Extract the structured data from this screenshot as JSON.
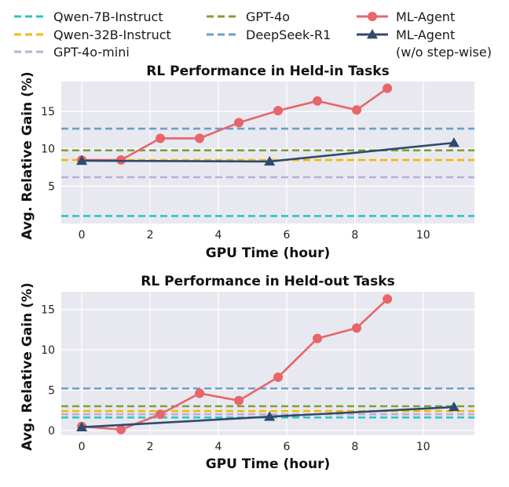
{
  "legend": {
    "entries": [
      {
        "label": "Qwen-7B-Instruct",
        "color": "#2ec4c4",
        "style": "dashed"
      },
      {
        "label": "Qwen-32B-Instruct",
        "color": "#f5b800",
        "style": "dashed"
      },
      {
        "label": "GPT-4o-mini",
        "color": "#b7b0d9",
        "style": "dashed"
      },
      {
        "label": "GPT-4o",
        "color": "#7f9e3a",
        "style": "dashed"
      },
      {
        "label": "DeepSeek-R1",
        "color": "#6b9fc9",
        "style": "dashed"
      },
      {
        "label": "ML-Agent",
        "color": "#e8656a",
        "style": "solid-circle"
      },
      {
        "label": "ML-Agent",
        "label2": "(w/o step-wise)",
        "color": "#2f4a6e",
        "style": "solid-triangle"
      }
    ]
  },
  "chart_data": [
    {
      "type": "line",
      "title": "RL Performance in Held-in Tasks",
      "xlabel": "GPU Time (hour)",
      "ylabel": "Avg. Relative Gain (%)",
      "xlim": [
        -0.6,
        11.5
      ],
      "ylim": [
        0,
        19
      ],
      "xticks": [
        0,
        2,
        4,
        6,
        8,
        10
      ],
      "yticks": [
        5,
        10,
        15
      ],
      "hlines": [
        {
          "name": "Qwen-7B-Instruct",
          "y": 1.0,
          "color": "#2ec4c4"
        },
        {
          "name": "GPT-4o-mini",
          "y": 6.2,
          "color": "#b7b0d9"
        },
        {
          "name": "Qwen-32B-Instruct",
          "y": 8.5,
          "color": "#f5b800"
        },
        {
          "name": "GPT-4o",
          "y": 9.8,
          "color": "#7f9e3a"
        },
        {
          "name": "DeepSeek-R1",
          "y": 12.7,
          "color": "#6b9fc9"
        }
      ],
      "series": [
        {
          "name": "ML-Agent",
          "marker": "circle",
          "color": "#e8656a",
          "x": [
            0,
            1.15,
            2.3,
            3.45,
            4.6,
            5.75,
            6.9,
            8.05,
            8.95
          ],
          "y": [
            8.5,
            8.5,
            11.4,
            11.4,
            13.5,
            15.1,
            16.4,
            15.2,
            18.1
          ]
        },
        {
          "name": "ML-Agent (w/o step-wise)",
          "marker": "triangle",
          "color": "#2f4a6e",
          "x": [
            0,
            5.5,
            10.9
          ],
          "y": [
            8.4,
            8.3,
            10.8
          ]
        }
      ]
    },
    {
      "type": "line",
      "title": "RL Performance in Held-out Tasks",
      "xlabel": "GPU Time (hour)",
      "ylabel": "Avg. Relative Gain (%)",
      "xlim": [
        -0.6,
        11.5
      ],
      "ylim": [
        -0.6,
        17.2
      ],
      "xticks": [
        0,
        2,
        4,
        6,
        8,
        10
      ],
      "yticks": [
        0,
        5,
        10,
        15
      ],
      "hlines": [
        {
          "name": "Qwen-7B-Instruct",
          "y": 1.6,
          "color": "#2ec4c4"
        },
        {
          "name": "GPT-4o-mini",
          "y": 2.0,
          "color": "#b7b0d9"
        },
        {
          "name": "Qwen-32B-Instruct",
          "y": 2.4,
          "color": "#f5b800"
        },
        {
          "name": "GPT-4o",
          "y": 3.0,
          "color": "#7f9e3a"
        },
        {
          "name": "DeepSeek-R1",
          "y": 5.2,
          "color": "#6b9fc9"
        }
      ],
      "series": [
        {
          "name": "ML-Agent",
          "marker": "circle",
          "color": "#e8656a",
          "x": [
            0,
            1.15,
            2.3,
            3.45,
            4.6,
            5.75,
            6.9,
            8.05,
            8.95
          ],
          "y": [
            0.5,
            0.1,
            2.0,
            4.6,
            3.7,
            6.6,
            11.4,
            12.7,
            16.3
          ]
        },
        {
          "name": "ML-Agent (w/o step-wise)",
          "marker": "triangle",
          "color": "#2f4a6e",
          "x": [
            0,
            5.5,
            10.9
          ],
          "y": [
            0.4,
            1.7,
            2.9
          ]
        }
      ]
    }
  ]
}
